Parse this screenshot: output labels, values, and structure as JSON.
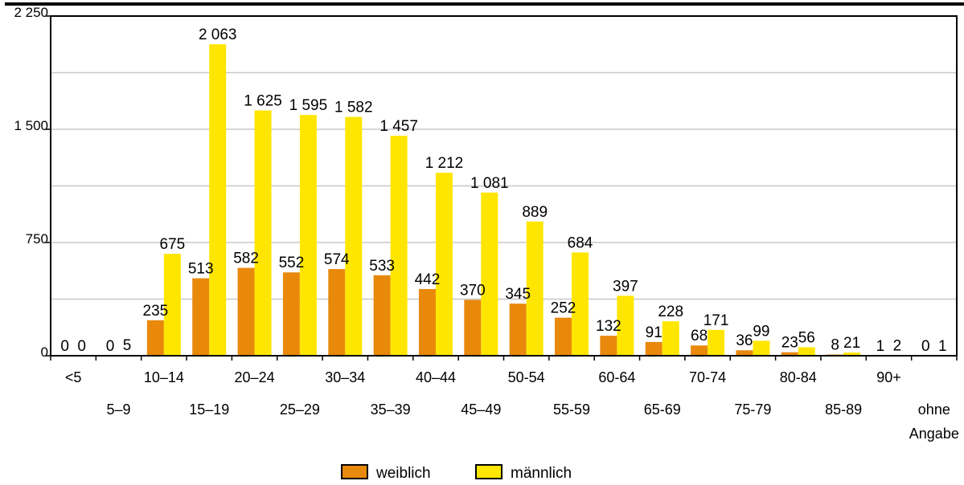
{
  "chart_data": {
    "type": "bar",
    "title": "",
    "xlabel": "",
    "ylabel": "",
    "ylim": [
      0,
      2250
    ],
    "yticks": [
      0,
      750,
      1500,
      2250
    ],
    "ytick_labels": [
      "0",
      "750",
      "1 500",
      "2 250"
    ],
    "grid": "horizontal",
    "legend_position": "bottom-center",
    "categories": [
      "<5",
      "5–9",
      "10–14",
      "15–19",
      "20–24",
      "25–29",
      "30–34",
      "35–39",
      "40–44",
      "45–49",
      "50-54",
      "55-59",
      "60-64",
      "65-69",
      "70-74",
      "75-79",
      "80-84",
      "85-89",
      "90+",
      "ohne Angabe"
    ],
    "category_display": [
      [
        "<5"
      ],
      [
        "5–9"
      ],
      [
        "10–14"
      ],
      [
        "15–19"
      ],
      [
        "20–24"
      ],
      [
        "25–29"
      ],
      [
        "30–34"
      ],
      [
        "35–39"
      ],
      [
        "40–44"
      ],
      [
        "45–49"
      ],
      [
        "50-54"
      ],
      [
        "55-59"
      ],
      [
        "60-64"
      ],
      [
        "65-69"
      ],
      [
        "70-74"
      ],
      [
        "75-79"
      ],
      [
        "80-84"
      ],
      [
        "85-89"
      ],
      [
        "90+"
      ],
      [
        "ohne",
        "Angabe"
      ]
    ],
    "series": [
      {
        "name": "weiblich",
        "color": "#e8890c",
        "values": [
          0,
          0,
          235,
          513,
          582,
          552,
          574,
          533,
          442,
          370,
          345,
          252,
          132,
          91,
          68,
          36,
          23,
          8,
          1,
          0
        ]
      },
      {
        "name": "männlich",
        "color": "#ffe600",
        "values": [
          0,
          5,
          675,
          2063,
          1625,
          1595,
          1582,
          1457,
          1212,
          1081,
          889,
          684,
          397,
          228,
          171,
          99,
          56,
          21,
          2,
          1
        ]
      }
    ]
  }
}
